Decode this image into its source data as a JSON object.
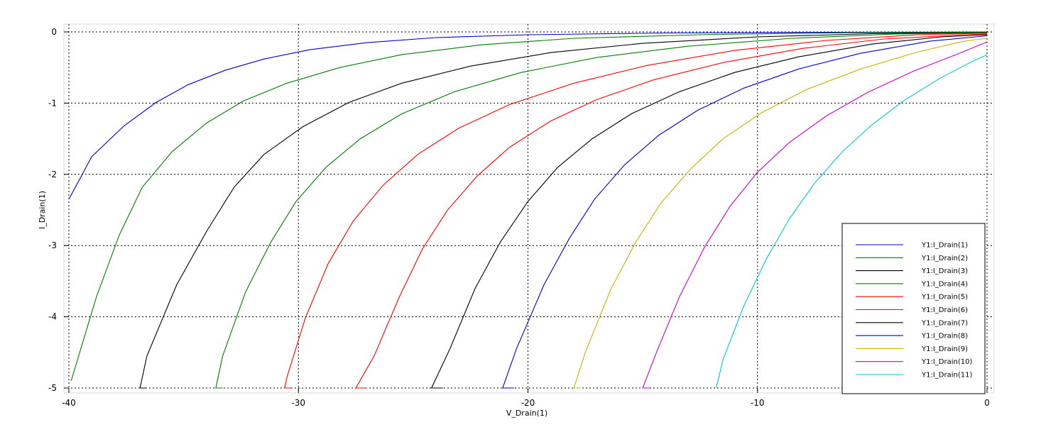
{
  "chart_data": {
    "type": "line",
    "title": "",
    "xlabel": "V_Drain(1)",
    "ylabel": "I_Drain(1)",
    "xlim": [
      -40,
      0
    ],
    "ylim": [
      -5,
      0
    ],
    "x_ticks": [
      "-40",
      "-30",
      "-20",
      "-10",
      "0"
    ],
    "y_ticks": [
      "0",
      "-1",
      "-2",
      "-3",
      "-4",
      "-5"
    ],
    "grid": true,
    "legend_position": "bottom-right",
    "series": [
      {
        "name": "Y1:I_Drain(1)",
        "color": "#0000cc",
        "points": [
          [
            -40,
            -2.35
          ],
          [
            -39,
            -1.75
          ],
          [
            -37.6,
            -1.32
          ],
          [
            -36.2,
            -0.99
          ],
          [
            -34.8,
            -0.74
          ],
          [
            -33.2,
            -0.54
          ],
          [
            -31.5,
            -0.38
          ],
          [
            -29.5,
            -0.25
          ],
          [
            -27,
            -0.15
          ],
          [
            -24,
            -0.08
          ],
          [
            -20,
            -0.04
          ],
          [
            -14,
            -0.015
          ],
          [
            -8,
            -0.006
          ],
          [
            0,
            -0.002
          ]
        ]
      },
      {
        "name": "Y1:I_Drain(2)",
        "color": "#007f00",
        "points": [
          [
            -39.9,
            -4.9
          ],
          [
            -38.8,
            -3.72
          ],
          [
            -37.8,
            -2.85
          ],
          [
            -36.8,
            -2.18
          ],
          [
            -35.5,
            -1.68
          ],
          [
            -34,
            -1.28
          ],
          [
            -32.4,
            -0.97
          ],
          [
            -30.5,
            -0.72
          ],
          [
            -28.2,
            -0.5
          ],
          [
            -25.5,
            -0.32
          ],
          [
            -22,
            -0.18
          ],
          [
            -18,
            -0.09
          ],
          [
            -12,
            -0.035
          ],
          [
            -6,
            -0.012
          ],
          [
            0,
            -0.004
          ]
        ]
      },
      {
        "name": "Y1:I_Drain(3)",
        "color": "#000000",
        "points": [
          [
            -36.6,
            -5
          ],
          [
            -36.9,
            -5
          ],
          [
            -36.6,
            -4.55
          ],
          [
            -35.3,
            -3.55
          ],
          [
            -34,
            -2.8
          ],
          [
            -32.8,
            -2.18
          ],
          [
            -31.5,
            -1.72
          ],
          [
            -29.8,
            -1.33
          ],
          [
            -27.8,
            -0.99
          ],
          [
            -25.5,
            -0.72
          ],
          [
            -22.5,
            -0.48
          ],
          [
            -19,
            -0.29
          ],
          [
            -15,
            -0.16
          ],
          [
            -10,
            -0.07
          ],
          [
            -5,
            -0.025
          ],
          [
            0,
            -0.008
          ]
        ]
      },
      {
        "name": "Y1:I_Drain(4)",
        "color": "#007f00",
        "points": [
          [
            -33.3,
            -5
          ],
          [
            -33.6,
            -5
          ],
          [
            -33.3,
            -4.55
          ],
          [
            -32.3,
            -3.65
          ],
          [
            -31.2,
            -2.95
          ],
          [
            -30.1,
            -2.38
          ],
          [
            -28.8,
            -1.9
          ],
          [
            -27.3,
            -1.5
          ],
          [
            -25.5,
            -1.15
          ],
          [
            -23.2,
            -0.84
          ],
          [
            -20.3,
            -0.57
          ],
          [
            -17,
            -0.36
          ],
          [
            -13,
            -0.2
          ],
          [
            -8.5,
            -0.09
          ],
          [
            -4,
            -0.03
          ],
          [
            0,
            -0.012
          ]
        ]
      },
      {
        "name": "Y1:I_Drain(5)",
        "color": "#ff0000",
        "points": [
          [
            -30.3,
            -5
          ],
          [
            -30.6,
            -5
          ],
          [
            -30.5,
            -4.85
          ],
          [
            -29.7,
            -4.02
          ],
          [
            -28.7,
            -3.25
          ],
          [
            -27.6,
            -2.65
          ],
          [
            -26.3,
            -2.15
          ],
          [
            -24.8,
            -1.72
          ],
          [
            -23,
            -1.35
          ],
          [
            -20.8,
            -1.02
          ],
          [
            -18,
            -0.72
          ],
          [
            -14.8,
            -0.47
          ],
          [
            -11,
            -0.26
          ],
          [
            -7,
            -0.12
          ],
          [
            -3,
            -0.04
          ],
          [
            0,
            -0.018
          ]
        ]
      },
      {
        "name": "Y1:I_Drain(6)",
        "color": "#ff0000",
        "points": [
          [
            -27,
            -5
          ],
          [
            -27.5,
            -5
          ],
          [
            -26.7,
            -4.55
          ],
          [
            -25.6,
            -3.72
          ],
          [
            -24.6,
            -3.05
          ],
          [
            -23.5,
            -2.5
          ],
          [
            -22.2,
            -2.02
          ],
          [
            -20.8,
            -1.62
          ],
          [
            -19,
            -1.25
          ],
          [
            -17,
            -0.95
          ],
          [
            -14.5,
            -0.67
          ],
          [
            -11.5,
            -0.43
          ],
          [
            -8,
            -0.23
          ],
          [
            -4.5,
            -0.1
          ],
          [
            -1,
            -0.04
          ],
          [
            0,
            -0.03
          ]
        ]
      },
      {
        "name": "Y1:I_Drain(7)",
        "color": "#000000",
        "points": [
          [
            -23.7,
            -5
          ],
          [
            -24.2,
            -5
          ],
          [
            -23.4,
            -4.45
          ],
          [
            -22.3,
            -3.6
          ],
          [
            -21.2,
            -2.95
          ],
          [
            -20,
            -2.38
          ],
          [
            -18.7,
            -1.9
          ],
          [
            -17.2,
            -1.5
          ],
          [
            -15.5,
            -1.15
          ],
          [
            -13.4,
            -0.84
          ],
          [
            -11,
            -0.57
          ],
          [
            -8.2,
            -0.35
          ],
          [
            -5,
            -0.17
          ],
          [
            -2,
            -0.07
          ],
          [
            0,
            -0.04
          ]
        ]
      },
      {
        "name": "Y1:I_Drain(8)",
        "color": "#0000cc",
        "points": [
          [
            -20.6,
            -5
          ],
          [
            -21.1,
            -5
          ],
          [
            -20.5,
            -4.45
          ],
          [
            -19.3,
            -3.55
          ],
          [
            -18.2,
            -2.9
          ],
          [
            -17.1,
            -2.35
          ],
          [
            -15.8,
            -1.87
          ],
          [
            -14.3,
            -1.45
          ],
          [
            -12.6,
            -1.1
          ],
          [
            -10.6,
            -0.79
          ],
          [
            -8.2,
            -0.52
          ],
          [
            -5.5,
            -0.3
          ],
          [
            -2.5,
            -0.13
          ],
          [
            0,
            -0.055
          ]
        ]
      },
      {
        "name": "Y1:I_Drain(9)",
        "color": "#c8b400",
        "points": [
          [
            -17.7,
            -5
          ],
          [
            -18,
            -5
          ],
          [
            -17.5,
            -4.5
          ],
          [
            -16.4,
            -3.62
          ],
          [
            -15.3,
            -2.95
          ],
          [
            -14.2,
            -2.4
          ],
          [
            -12.9,
            -1.92
          ],
          [
            -11.5,
            -1.5
          ],
          [
            -9.8,
            -1.13
          ],
          [
            -7.8,
            -0.8
          ],
          [
            -5.5,
            -0.52
          ],
          [
            -3,
            -0.28
          ],
          [
            -1,
            -0.13
          ],
          [
            0,
            -0.09
          ]
        ]
      },
      {
        "name": "Y1:I_Drain(10)",
        "color": "#cc00cc",
        "points": [
          [
            -14.7,
            -5
          ],
          [
            -15,
            -5
          ],
          [
            -14.4,
            -4.5
          ],
          [
            -13.4,
            -3.72
          ],
          [
            -12.3,
            -3.02
          ],
          [
            -11.2,
            -2.45
          ],
          [
            -10,
            -1.97
          ],
          [
            -8.6,
            -1.55
          ],
          [
            -7,
            -1.18
          ],
          [
            -5.2,
            -0.85
          ],
          [
            -3.2,
            -0.55
          ],
          [
            -1.2,
            -0.3
          ],
          [
            0,
            -0.14
          ]
        ]
      },
      {
        "name": "Y1:I_Drain(11)",
        "color": "#00c8c8",
        "points": [
          [
            -11.8,
            -5
          ],
          [
            -11.5,
            -4.6
          ],
          [
            -10.6,
            -3.85
          ],
          [
            -9.6,
            -3.18
          ],
          [
            -8.6,
            -2.62
          ],
          [
            -7.5,
            -2.12
          ],
          [
            -6.3,
            -1.68
          ],
          [
            -5,
            -1.3
          ],
          [
            -3.6,
            -0.96
          ],
          [
            -2.1,
            -0.66
          ],
          [
            -0.8,
            -0.44
          ],
          [
            0,
            -0.32
          ]
        ]
      }
    ]
  }
}
